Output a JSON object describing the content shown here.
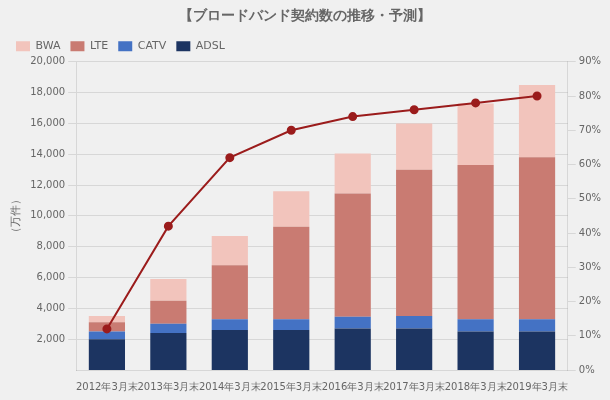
{
  "chart_data": {
    "type": "bar",
    "title": "【ブロードバンド契約数の推移・予測】",
    "ylabel": "（万件）",
    "categories": [
      "2012年3月末",
      "2013年3月末",
      "2014年3月末",
      "2015年3月末",
      "2016年3月末",
      "2017年3月末",
      "2018年3月末",
      "2019年3月末"
    ],
    "stacked": true,
    "grid": true,
    "legend": "upper left",
    "series": [
      {
        "name": "ADSL",
        "color": "#1c3461",
        "values": [
          2000,
          2400,
          2600,
          2600,
          2700,
          2700,
          2500,
          2500
        ]
      },
      {
        "name": "CATV",
        "color": "#4472c4",
        "values": [
          500,
          600,
          700,
          700,
          750,
          800,
          800,
          800
        ]
      },
      {
        "name": "LTE",
        "color": "#c97b72",
        "values": [
          600,
          1500,
          3500,
          6000,
          8000,
          9500,
          10000,
          10500
        ]
      },
      {
        "name": "BWA",
        "color": "#f2c4bc",
        "values": [
          400,
          1400,
          1900,
          2300,
          2600,
          3000,
          4000,
          4700
        ]
      },
      {
        "type": "line",
        "axis": "y2",
        "color": "#9b1c1c",
        "marker": "circle",
        "line_style": "solid",
        "values": [
          12,
          42,
          62,
          70,
          74,
          76,
          78,
          80
        ]
      }
    ],
    "ylim": [
      0,
      20000
    ],
    "yticks": [
      {
        "value": 2000,
        "label": "2,000"
      },
      {
        "value": 4000,
        "label": "4,000"
      },
      {
        "value": 6000,
        "label": "6,000"
      },
      {
        "value": 8000,
        "label": "8,000"
      },
      {
        "value": 10000,
        "label": "10,000"
      },
      {
        "value": 12000,
        "label": "12,000"
      },
      {
        "value": 14000,
        "label": "14,000"
      },
      {
        "value": 16000,
        "label": "16,000"
      },
      {
        "value": 18000,
        "label": "18,000"
      },
      {
        "value": 20000,
        "label": "20,000"
      }
    ],
    "y2lim": [
      0,
      90
    ],
    "y2ticks": [
      {
        "value": 0,
        "label": "0%"
      },
      {
        "value": 10,
        "label": "10%"
      },
      {
        "value": 20,
        "label": "20%"
      },
      {
        "value": 30,
        "label": "30%"
      },
      {
        "value": 40,
        "label": "40%"
      },
      {
        "value": 50,
        "label": "50%"
      },
      {
        "value": 60,
        "label": "60%"
      },
      {
        "value": 70,
        "label": "70%"
      },
      {
        "value": 80,
        "label": "80%"
      },
      {
        "value": 90,
        "label": "90%"
      }
    ]
  }
}
